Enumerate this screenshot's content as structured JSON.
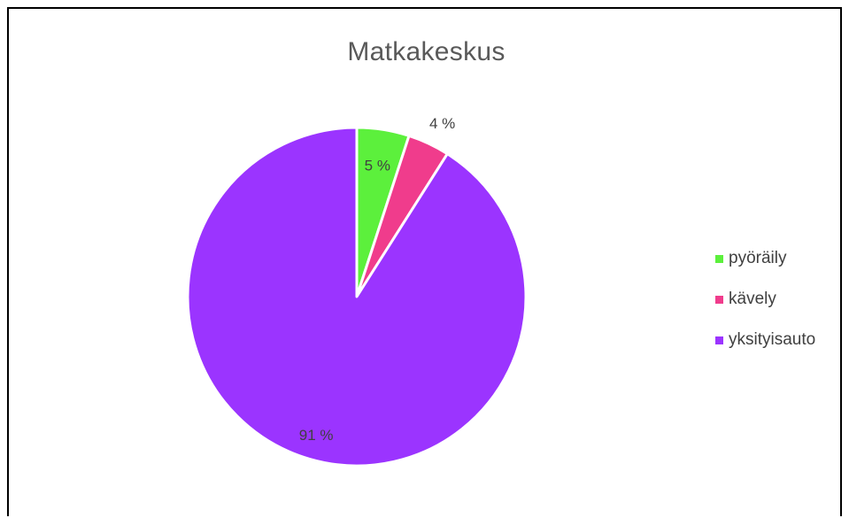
{
  "chart_data": {
    "type": "pie",
    "title": "Matkakeskus",
    "categories": [
      "pyöräily",
      "kävely",
      "yksityisauto"
    ],
    "values": [
      5,
      4,
      91
    ],
    "labels": [
      "5 %",
      "4 %",
      "91 %"
    ],
    "colors": [
      "#5CF03C",
      "#F03C8C",
      "#9B34FF"
    ],
    "legend_position": "right",
    "start_angle_deg": 0,
    "direction": "clockwise"
  }
}
